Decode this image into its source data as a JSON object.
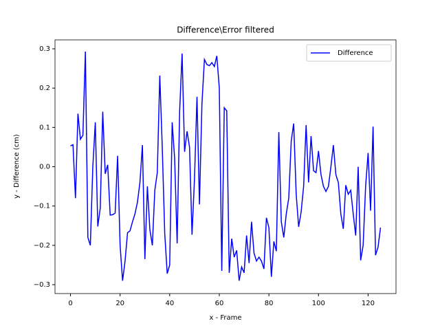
{
  "chart_data": {
    "type": "line",
    "title": "Difference\\Error filtered",
    "xlabel": "x - Frame",
    "ylabel": "y - Difference (cm)",
    "x": [
      0,
      1,
      2,
      3,
      4,
      5,
      6,
      7,
      8,
      9,
      10,
      11,
      12,
      13,
      14,
      15,
      16,
      17,
      18,
      19,
      20,
      21,
      22,
      23,
      24,
      25,
      26,
      27,
      28,
      29,
      30,
      31,
      32,
      33,
      34,
      35,
      36,
      37,
      38,
      39,
      40,
      41,
      42,
      43,
      44,
      45,
      46,
      47,
      48,
      49,
      50,
      51,
      52,
      53,
      54,
      55,
      56,
      57,
      58,
      59,
      60,
      61,
      62,
      63,
      64,
      65,
      66,
      67,
      68,
      69,
      70,
      71,
      72,
      73,
      74,
      75,
      76,
      77,
      78,
      79,
      80,
      81,
      82,
      83,
      84,
      85,
      86,
      87,
      88,
      89,
      90,
      91,
      92,
      93,
      94,
      95,
      96,
      97,
      98,
      99,
      100,
      101,
      102,
      103,
      104,
      105,
      106,
      107,
      108,
      109,
      110,
      111,
      112,
      113,
      114,
      115,
      116,
      117,
      118,
      119,
      120,
      121,
      122,
      123,
      124,
      125
    ],
    "series": [
      {
        "name": "Difference",
        "color": "#0000ff",
        "values": [
          0.053,
          0.056,
          -0.08,
          0.135,
          0.07,
          0.08,
          0.293,
          -0.18,
          -0.2,
          0.0,
          0.113,
          -0.152,
          -0.105,
          0.14,
          -0.018,
          0.005,
          -0.123,
          -0.122,
          -0.118,
          0.028,
          -0.2,
          -0.29,
          -0.24,
          -0.168,
          -0.163,
          -0.14,
          -0.12,
          -0.09,
          -0.04,
          0.055,
          -0.235,
          -0.05,
          -0.16,
          -0.2,
          -0.06,
          -0.015,
          0.232,
          0.05,
          -0.17,
          -0.272,
          -0.25,
          0.113,
          0.02,
          -0.195,
          0.14,
          0.288,
          0.038,
          0.09,
          0.05,
          -0.173,
          -0.03,
          0.178,
          -0.096,
          0.16,
          0.273,
          0.26,
          0.257,
          0.265,
          0.255,
          0.282,
          0.2,
          -0.265,
          0.15,
          0.142,
          -0.27,
          -0.183,
          -0.23,
          -0.213,
          -0.29,
          -0.255,
          -0.27,
          -0.175,
          -0.245,
          -0.14,
          -0.22,
          -0.24,
          -0.23,
          -0.24,
          -0.26,
          -0.13,
          -0.155,
          -0.28,
          -0.19,
          -0.215,
          0.088,
          -0.14,
          -0.18,
          -0.12,
          -0.08,
          0.065,
          0.11,
          -0.07,
          -0.153,
          -0.115,
          -0.05,
          0.106,
          -0.04,
          0.078,
          -0.01,
          -0.015,
          0.04,
          -0.02,
          -0.05,
          -0.063,
          -0.05,
          0.0,
          0.055,
          -0.02,
          -0.04,
          -0.12,
          -0.158,
          -0.047,
          -0.07,
          -0.06,
          -0.12,
          -0.175,
          0.0,
          -0.238,
          -0.2,
          -0.05,
          0.035,
          -0.112,
          0.102,
          -0.225,
          -0.205,
          -0.155
        ]
      }
    ],
    "xlim": [
      -6.25,
      131.25
    ],
    "xticks": [
      0,
      20,
      40,
      60,
      80,
      100,
      120
    ],
    "ylim": [
      -0.3227,
      0.3227
    ],
    "yticks": [
      {
        "value": -0.3,
        "label": "−0.3"
      },
      {
        "value": -0.2,
        "label": "−0.2"
      },
      {
        "value": -0.1,
        "label": "−0.1"
      },
      {
        "value": 0,
        "label": "0.0"
      },
      0.1,
      0.2,
      0.3
    ],
    "legend": "upper right"
  }
}
